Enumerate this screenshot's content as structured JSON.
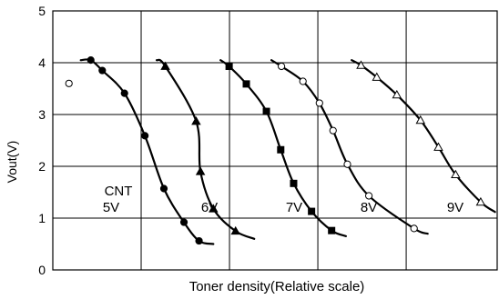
{
  "chart_data": {
    "type": "line",
    "title": "",
    "xlabel": "Toner density(Relative scale)",
    "ylabel": "Vout(V)",
    "ylim": [
      0,
      5
    ],
    "yticks": [
      "0",
      "1",
      "2",
      "3",
      "4",
      "5"
    ],
    "xtick_labels_shown": false,
    "grid": true,
    "annotation": "CNT",
    "series": [
      {
        "name": "5V",
        "marker": "filled-circle",
        "x": [
          0.06,
          0.38,
          1.0,
          1.57,
          2.1,
          2.66,
          3.08
        ],
        "y": [
          4.05,
          3.85,
          3.41,
          2.59,
          1.57,
          0.92,
          0.56
        ],
        "x_extend": [
          -0.22,
          3.48
        ],
        "y_extend": [
          4.05,
          0.5
        ]
      },
      {
        "name": "6V",
        "marker": "filled-triangle",
        "x": [
          2.14,
          3.0,
          3.12,
          3.48,
          4.1
        ],
        "y": [
          3.93,
          2.87,
          1.9,
          1.18,
          0.75
        ],
        "x_extend": [
          1.9,
          4.62
        ],
        "y_extend": [
          4.05,
          0.6
        ]
      },
      {
        "name": "7V",
        "marker": "filled-square",
        "x": [
          3.92,
          4.4,
          4.96,
          5.36,
          5.72,
          6.22,
          6.78
        ],
        "y": [
          3.93,
          3.59,
          3.06,
          2.32,
          1.67,
          1.13,
          0.76
        ],
        "x_extend": [
          3.68,
          7.18
        ],
        "y_extend": [
          4.05,
          0.65
        ]
      },
      {
        "name": "8V",
        "marker": "open-circle",
        "x": [
          5.38,
          5.98,
          6.44,
          6.82,
          7.22,
          7.82,
          9.08
        ],
        "y": [
          3.93,
          3.64,
          3.22,
          2.69,
          2.04,
          1.43,
          0.8
        ],
        "x_extend": [
          5.1,
          9.46
        ],
        "y_extend": [
          4.05,
          0.7
        ]
      },
      {
        "name": "9V",
        "marker": "open-triangle",
        "x": [
          7.6,
          8.04,
          8.6,
          9.26,
          9.76,
          10.24,
          10.94
        ],
        "y": [
          3.95,
          3.72,
          3.38,
          2.89,
          2.37,
          1.84,
          1.31
        ],
        "x_extend": [
          7.34,
          11.34
        ],
        "y_extend": [
          4.05,
          1.12
        ]
      }
    ],
    "outlier": {
      "marker": "open-circle",
      "x": -0.55,
      "y": 3.6
    }
  }
}
